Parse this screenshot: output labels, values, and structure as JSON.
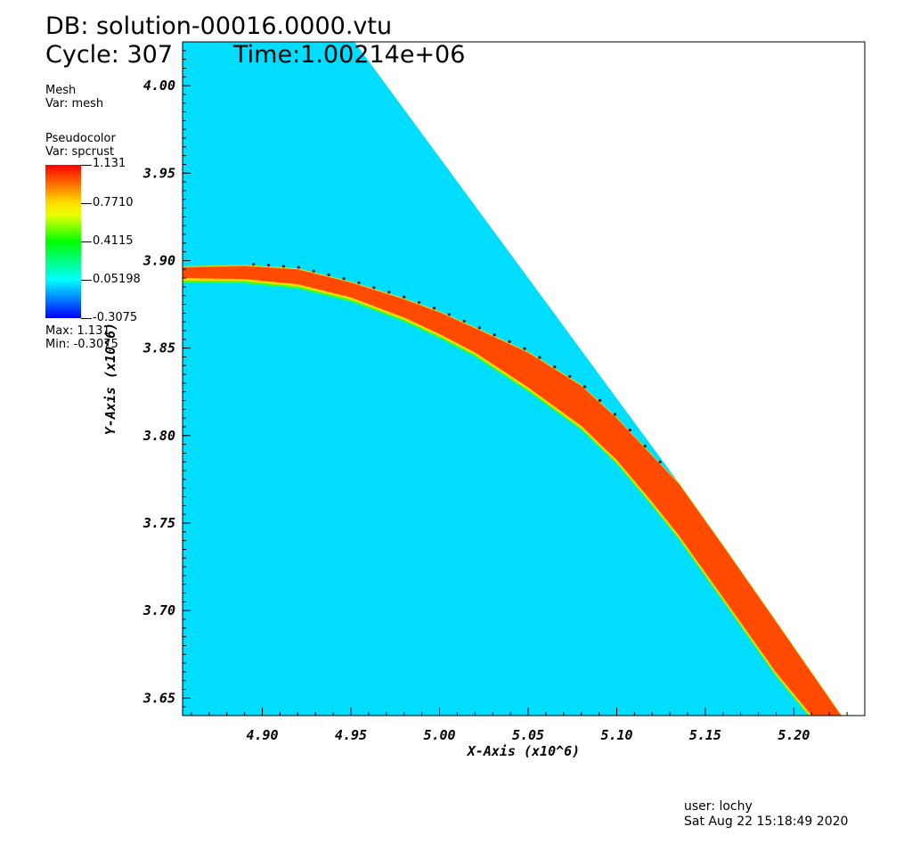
{
  "header": {
    "db_line": "DB: solution-00016.0000.vtu",
    "cycle_line": "Cycle: 307",
    "time_line": "Time:1.00214e+06"
  },
  "mesh_legend": {
    "title": "Mesh",
    "var": "Var: mesh"
  },
  "pseudocolor_legend": {
    "title": "Pseudocolor",
    "var": "Var: spcrust",
    "tick_labels": [
      "1.131",
      "0.7710",
      "0.4115",
      "0.05198",
      "-0.3075"
    ],
    "max_label": "Max:  1.131",
    "min_label": "Min: -0.3075"
  },
  "footer": {
    "user": "user: lochy",
    "date": "Sat Aug 22 15:18:49 2020"
  },
  "colors": {
    "background_field": "#00ddff",
    "crust_band": "#ff4a00",
    "crust_core": "#ff5a00",
    "edge_yellow": "#ffdd00",
    "edge_green": "#33ff33"
  },
  "chart_data": {
    "type": "heatmap",
    "variable": "spcrust",
    "xlabel": "X-Axis (x10^6)",
    "ylabel": "Y-Axis (x10^6)",
    "xlim": [
      4.855,
      5.24
    ],
    "ylim": [
      3.64,
      4.025
    ],
    "x_ticks": [
      4.9,
      4.95,
      5.0,
      5.05,
      5.1,
      5.15,
      5.2
    ],
    "x_tick_labels": [
      "4.90",
      "4.95",
      "5.00",
      "5.05",
      "5.10",
      "5.15",
      "5.20"
    ],
    "y_ticks": [
      3.65,
      3.7,
      3.75,
      3.8,
      3.85,
      3.9,
      3.95,
      4.0
    ],
    "y_tick_labels": [
      "3.65",
      "3.70",
      "3.75",
      "3.80",
      "3.85",
      "3.90",
      "3.95",
      "4.00"
    ],
    "value_range": [
      -0.3075,
      1.131
    ],
    "domain_boundary": [
      [
        4.855,
        4.025
      ],
      [
        4.952,
        4.025
      ],
      [
        5.135,
        3.773
      ],
      [
        5.227,
        3.64
      ],
      [
        4.855,
        3.64
      ]
    ],
    "crust_layer_top": [
      [
        4.855,
        3.8967
      ],
      [
        4.89,
        3.8975
      ],
      [
        4.92,
        3.8955
      ],
      [
        4.95,
        3.888
      ],
      [
        4.98,
        3.8785
      ],
      [
        5.0,
        3.871
      ],
      [
        5.02,
        3.862
      ],
      [
        5.05,
        3.848
      ],
      [
        5.08,
        3.829
      ],
      [
        5.1,
        3.8105
      ],
      [
        5.12,
        3.789
      ],
      [
        5.135,
        3.773
      ],
      [
        5.16,
        3.7375
      ],
      [
        5.19,
        3.694
      ],
      [
        5.227,
        3.64
      ]
    ],
    "crust_layer_bottom": [
      [
        4.855,
        3.89
      ],
      [
        4.89,
        3.8895
      ],
      [
        4.92,
        3.8865
      ],
      [
        4.95,
        3.879
      ],
      [
        4.98,
        3.8675
      ],
      [
        5.0,
        3.858
      ],
      [
        5.02,
        3.8475
      ],
      [
        5.05,
        3.8275
      ],
      [
        5.08,
        3.8055
      ],
      [
        5.1,
        3.786
      ],
      [
        5.12,
        3.762
      ],
      [
        5.135,
        3.743
      ],
      [
        5.16,
        3.7075
      ],
      [
        5.19,
        3.6645
      ],
      [
        5.21,
        3.64
      ]
    ]
  }
}
